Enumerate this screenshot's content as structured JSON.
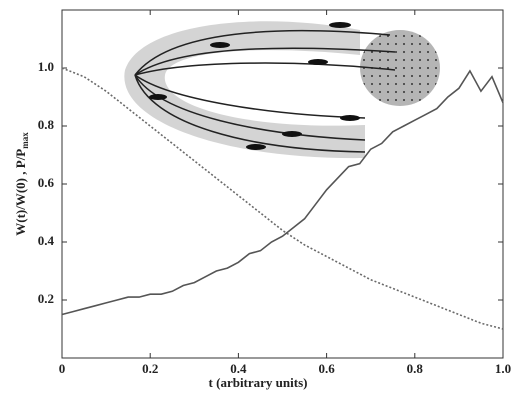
{
  "chart_data": {
    "type": "line",
    "xlabel": "t (arbitrary units)",
    "ylabel": "W(t)/W(0) , P/P",
    "ylabel_sub": "max",
    "xlim": [
      0,
      1
    ],
    "ylim": [
      0,
      1.2
    ],
    "xticks": [
      0,
      0.2,
      0.4,
      0.6,
      0.8,
      {
        "value": 1,
        "label": "1.0"
      }
    ],
    "yticks": [
      0.2,
      0.4,
      0.6,
      0.8,
      {
        "value": 1,
        "label": "1.0"
      }
    ],
    "x": [
      0,
      0.025,
      0.05,
      0.075,
      0.1,
      0.125,
      0.15,
      0.175,
      0.2,
      0.225,
      0.25,
      0.275,
      0.3,
      0.325,
      0.35,
      0.375,
      0.4,
      0.425,
      0.45,
      0.475,
      0.5,
      0.525,
      0.55,
      0.575,
      0.6,
      0.625,
      0.65,
      0.675,
      0.7,
      0.725,
      0.75,
      0.775,
      0.8,
      0.825,
      0.85,
      0.875,
      0.9,
      0.925,
      0.95,
      0.975,
      1
    ],
    "series": [
      {
        "color": "#6a6a6a",
        "dashed": true,
        "values": [
          1.0,
          0.985,
          0.97,
          0.945,
          0.92,
          0.89,
          0.86,
          0.83,
          0.8,
          0.77,
          0.74,
          0.71,
          0.68,
          0.65,
          0.62,
          0.59,
          0.56,
          0.53,
          0.5,
          0.47,
          0.44,
          0.415,
          0.39,
          0.37,
          0.35,
          0.33,
          0.31,
          0.29,
          0.27,
          0.255,
          0.24,
          0.225,
          0.21,
          0.195,
          0.18,
          0.165,
          0.15,
          0.135,
          0.12,
          0.11,
          0.1
        ]
      },
      {
        "color": "#555555",
        "dashed": false,
        "values": [
          0.15,
          0.16,
          0.17,
          0.18,
          0.19,
          0.2,
          0.21,
          0.21,
          0.22,
          0.22,
          0.23,
          0.25,
          0.26,
          0.28,
          0.3,
          0.31,
          0.33,
          0.36,
          0.37,
          0.4,
          0.42,
          0.45,
          0.48,
          0.53,
          0.58,
          0.62,
          0.66,
          0.67,
          0.72,
          0.74,
          0.78,
          0.8,
          0.82,
          0.84,
          0.86,
          0.9,
          0.93,
          0.99,
          0.92,
          0.97,
          0.88
        ]
      }
    ]
  }
}
